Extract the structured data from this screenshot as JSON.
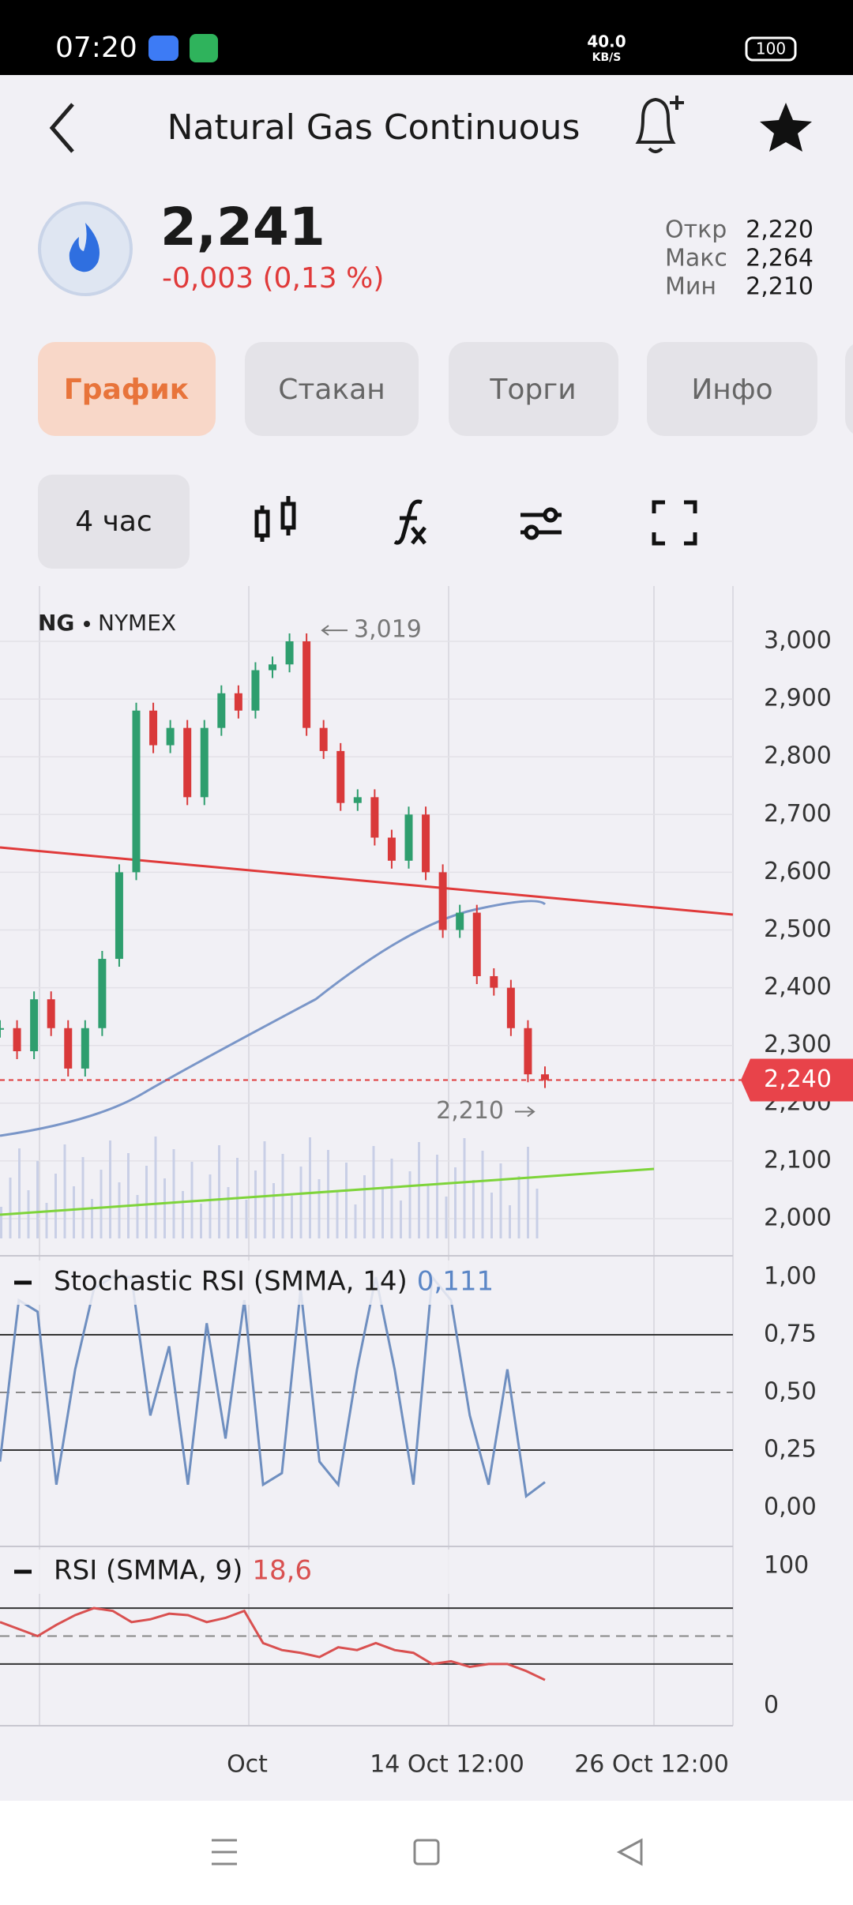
{
  "status_bar": {
    "time": "07:20",
    "network": "40.0",
    "network_unit": "KB/S",
    "battery": "100"
  },
  "header": {
    "title": "Natural Gas Continuous"
  },
  "quote": {
    "price": "2,241",
    "change": "-0,003 (0,13 %)",
    "stats": [
      {
        "label": "Откр",
        "value": "2,220"
      },
      {
        "label": "Макс",
        "value": "2,264"
      },
      {
        "label": "Мин",
        "value": "2,210"
      }
    ]
  },
  "tabs": [
    "График",
    "Стакан",
    "Торги",
    "Инфо"
  ],
  "toolbar": {
    "interval": "4 час"
  },
  "chart": {
    "symbol": "NG",
    "exchange": "NYMEX",
    "price_ticks": [
      {
        "value": 3000,
        "label": "3,000"
      },
      {
        "value": 2900,
        "label": "2,900"
      },
      {
        "value": 2800,
        "label": "2,800"
      },
      {
        "value": 2700,
        "label": "2,700"
      },
      {
        "value": 2600,
        "label": "2,600"
      },
      {
        "value": 2500,
        "label": "2,500"
      },
      {
        "value": 2400,
        "label": "2,400"
      },
      {
        "value": 2300,
        "label": "2,300"
      },
      {
        "value": 2200,
        "label": "2,200"
      },
      {
        "value": 2100,
        "label": "2,100"
      },
      {
        "value": 2000,
        "label": "2,000"
      }
    ],
    "closes": [
      2330,
      2290,
      2380,
      2330,
      2260,
      2330,
      2450,
      2600,
      2880,
      2820,
      2850,
      2730,
      2850,
      2910,
      2880,
      2950,
      2960,
      3000,
      2850,
      2810,
      2720,
      2730,
      2660,
      2620,
      2700,
      2600,
      2500,
      2530,
      2420,
      2400,
      2330,
      2250,
      2240
    ],
    "high_label": {
      "value": 3019,
      "label": "3,019"
    },
    "low_label": {
      "value": 2210,
      "label": "2,210"
    },
    "last_price": {
      "value": 2240,
      "label": "2,240"
    },
    "stoch": {
      "label": "Stochastic RSI (SMMA, 14)",
      "last": {
        "value": 0.111,
        "label": "0,111"
      },
      "ticks": [
        {
          "value": 1,
          "label": "1,00"
        },
        {
          "value": 0.75,
          "label": "0,75"
        },
        {
          "value": 0.5,
          "label": "0,50"
        },
        {
          "value": 0.25,
          "label": "0,25"
        },
        {
          "value": 0,
          "label": "0,00"
        }
      ],
      "values": [
        0.2,
        0.9,
        0.85,
        0.1,
        0.6,
        0.95,
        1,
        1,
        0.4,
        0.7,
        0.1,
        0.8,
        0.3,
        0.9,
        0.1,
        0.15,
        0.95,
        0.2,
        0.1,
        0.6,
        1,
        0.6,
        0.1,
        1,
        0.9,
        0.4,
        0.1,
        0.6,
        0.05,
        0.111
      ]
    },
    "rsi": {
      "label": "RSI (SMMA, 9)",
      "last": {
        "value": 18.6,
        "label": "18,6"
      },
      "ticks": [
        {
          "value": 100,
          "label": "100"
        },
        {
          "value": 0,
          "label": "0"
        }
      ],
      "levels": [
        30,
        50,
        70
      ],
      "values": [
        60,
        55,
        50,
        58,
        65,
        70,
        68,
        60,
        62,
        66,
        65,
        60,
        63,
        68,
        45,
        40,
        38,
        35,
        42,
        40,
        45,
        40,
        38,
        30,
        32,
        28,
        30,
        30,
        25,
        18.6
      ]
    },
    "dates": [
      "Oct",
      "14 Oct 12:00",
      "26 Oct 12:00"
    ]
  }
}
